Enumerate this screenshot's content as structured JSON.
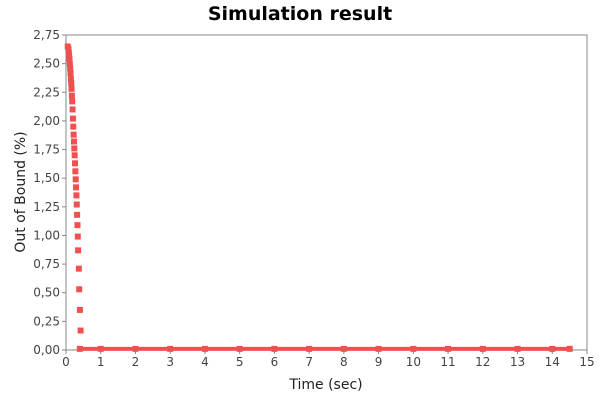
{
  "chart_data": {
    "type": "scatter",
    "title": "Simulation result",
    "xlabel": "Time (sec)",
    "ylabel": "Out of Bound (%)",
    "xlim": [
      0,
      15
    ],
    "ylim": [
      0,
      2.75
    ],
    "x_ticks": [
      0,
      1,
      2,
      3,
      4,
      5,
      6,
      7,
      8,
      9,
      10,
      11,
      12,
      13,
      14,
      15
    ],
    "x_tick_labels": [
      "0",
      "1",
      "2",
      "3",
      "4",
      "5",
      "6",
      "7",
      "8",
      "9",
      "10",
      "11",
      "12",
      "13",
      "14",
      "15"
    ],
    "y_ticks": [
      0,
      0.25,
      0.5,
      0.75,
      1.0,
      1.25,
      1.5,
      1.75,
      2.0,
      2.25,
      2.5,
      2.75
    ],
    "y_tick_labels": [
      "0,00",
      "0,25",
      "0,50",
      "0,75",
      "1,00",
      "1,25",
      "1,50",
      "1,75",
      "2,00",
      "2,25",
      "2,50",
      "2,75"
    ],
    "grid": false,
    "legend": "none",
    "series": [
      {
        "color": "#f05050",
        "points": [
          [
            0.05,
            2.65
          ],
          [
            0.07,
            2.63
          ],
          [
            0.08,
            2.6
          ],
          [
            0.09,
            2.57
          ],
          [
            0.1,
            2.54
          ],
          [
            0.11,
            2.5
          ],
          [
            0.12,
            2.46
          ],
          [
            0.13,
            2.42
          ],
          [
            0.14,
            2.37
          ],
          [
            0.15,
            2.33
          ],
          [
            0.16,
            2.28
          ],
          [
            0.17,
            2.22
          ],
          [
            0.18,
            2.17
          ],
          [
            0.19,
            2.1
          ],
          [
            0.2,
            2.02
          ],
          [
            0.21,
            1.95
          ],
          [
            0.22,
            1.88
          ],
          [
            0.23,
            1.82
          ],
          [
            0.24,
            1.76
          ],
          [
            0.25,
            1.7
          ],
          [
            0.26,
            1.63
          ],
          [
            0.27,
            1.56
          ],
          [
            0.28,
            1.49
          ],
          [
            0.29,
            1.42
          ],
          [
            0.3,
            1.35
          ],
          [
            0.31,
            1.27
          ],
          [
            0.32,
            1.18
          ],
          [
            0.33,
            1.09
          ],
          [
            0.34,
            0.99
          ],
          [
            0.35,
            0.87
          ],
          [
            0.37,
            0.71
          ],
          [
            0.38,
            0.53
          ],
          [
            0.4,
            0.35
          ],
          [
            0.42,
            0.17
          ],
          [
            0.4,
            0.01
          ],
          [
            1,
            0.01
          ],
          [
            2,
            0.01
          ],
          [
            3,
            0.01
          ],
          [
            4,
            0.01
          ],
          [
            5,
            0.01
          ],
          [
            6,
            0.01
          ],
          [
            7,
            0.01
          ],
          [
            8,
            0.01
          ],
          [
            9,
            0.01
          ],
          [
            10,
            0.01
          ],
          [
            11,
            0.01
          ],
          [
            12,
            0.01
          ],
          [
            13,
            0.01
          ],
          [
            14,
            0.01
          ],
          [
            14.5,
            0.01
          ]
        ]
      }
    ]
  }
}
